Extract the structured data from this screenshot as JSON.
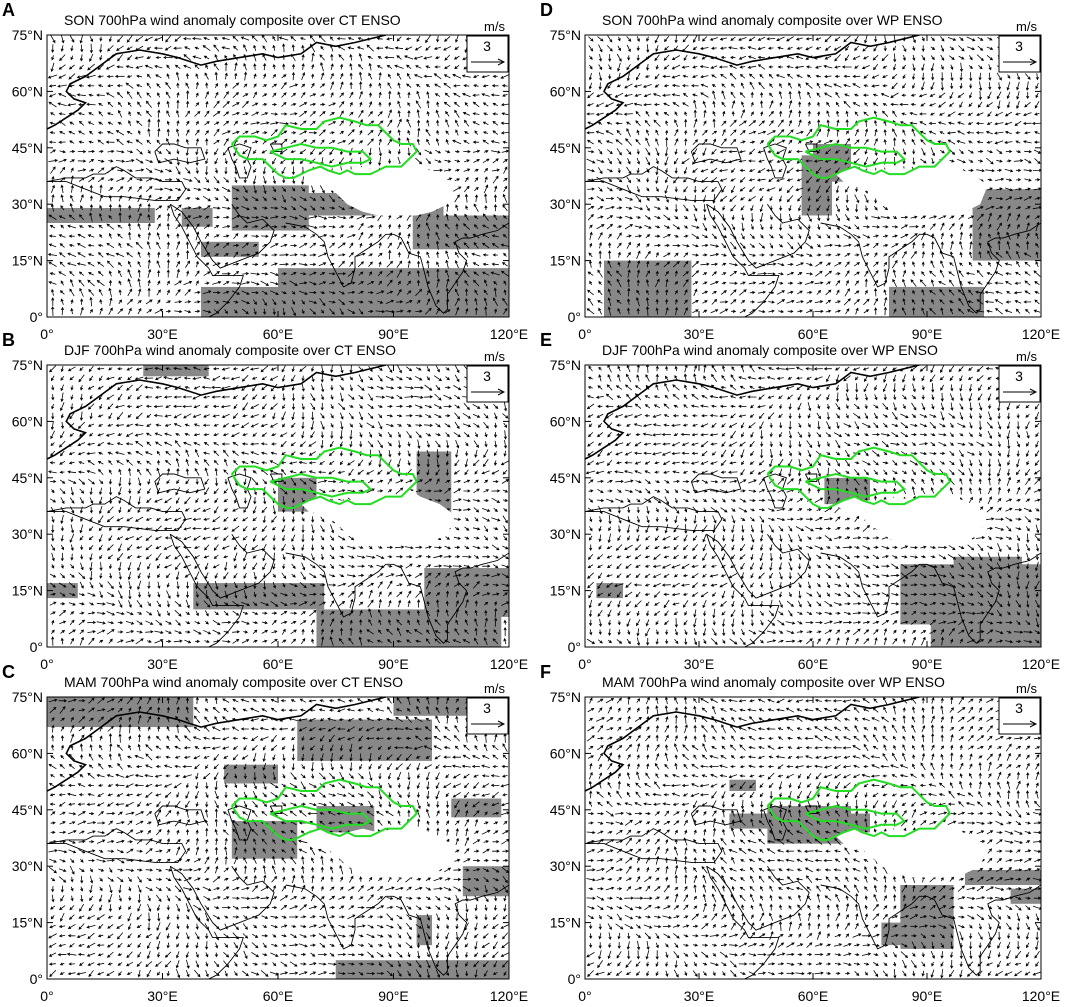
{
  "figure": {
    "x_ticks": [
      "0°",
      "30°E",
      "60°E",
      "90°E",
      "120°E"
    ],
    "y_ticks": [
      "75°N",
      "60°N",
      "45°N",
      "30°N",
      "15°N",
      "0°"
    ],
    "ref_vector": {
      "units": "m/s",
      "value": "3"
    },
    "colors": {
      "vector": "#000000",
      "shading": "#888888",
      "region_outline": "#22dd22",
      "coastline": "#000000",
      "tibet_mask": "#ffffff"
    },
    "extent": {
      "lon": [
        0,
        120
      ],
      "lat": [
        0,
        75
      ]
    }
  },
  "panels": [
    {
      "letter": "A",
      "title": "SON 700hPa wind anomaly composite over CT ENSO",
      "shading_rects": [
        [
          0,
          25,
          28,
          29
        ],
        [
          35,
          24,
          43,
          29
        ],
        [
          40,
          16,
          55,
          20
        ],
        [
          48,
          23,
          68,
          35
        ],
        [
          60,
          27,
          103,
          33
        ],
        [
          95,
          18,
          120,
          27
        ],
        [
          60,
          0,
          120,
          13
        ],
        [
          40,
          0,
          60,
          8
        ]
      ]
    },
    {
      "letter": "D",
      "title": "SON 700hPa wind anomaly composite over WP ENSO",
      "shading_rects": [
        [
          57,
          27,
          65,
          43
        ],
        [
          60,
          36,
          70,
          46
        ],
        [
          102,
          15,
          120,
          34
        ],
        [
          80,
          0,
          105,
          8
        ],
        [
          5,
          0,
          28,
          15
        ]
      ]
    },
    {
      "letter": "B",
      "title": "DJF 700hPa wind anomaly composite over CT ENSO",
      "shading_rects": [
        [
          25,
          72,
          42,
          75
        ],
        [
          0,
          13,
          8,
          17
        ],
        [
          38,
          10,
          72,
          17
        ],
        [
          70,
          0,
          118,
          10
        ],
        [
          98,
          8,
          120,
          21
        ],
        [
          96,
          34,
          105,
          52
        ],
        [
          60,
          36,
          70,
          45
        ]
      ]
    },
    {
      "letter": "E",
      "title": "DJF 700hPa wind anomaly composite over WP ENSO",
      "shading_rects": [
        [
          3,
          13,
          10,
          17
        ],
        [
          63,
          38,
          75,
          45
        ],
        [
          83,
          6,
          120,
          22
        ],
        [
          97,
          15,
          115,
          24
        ],
        [
          91,
          0,
          120,
          8
        ]
      ]
    },
    {
      "letter": "C",
      "title": "MAM 700hPa wind anomaly composite over CT ENSO",
      "shading_rects": [
        [
          0,
          67,
          38,
          75
        ],
        [
          46,
          52,
          60,
          57
        ],
        [
          65,
          58,
          100,
          69
        ],
        [
          90,
          70,
          115,
          75
        ],
        [
          48,
          32,
          65,
          42
        ],
        [
          105,
          43,
          118,
          48
        ],
        [
          108,
          22,
          120,
          30
        ],
        [
          75,
          0,
          120,
          5
        ],
        [
          96,
          9,
          100,
          17
        ],
        [
          70,
          38,
          85,
          46
        ]
      ]
    },
    {
      "letter": "F",
      "title": "MAM 700hPa wind anomaly composite over WP ENSO",
      "shading_rects": [
        [
          38,
          40,
          52,
          44
        ],
        [
          48,
          36,
          70,
          46
        ],
        [
          60,
          37,
          75,
          44
        ],
        [
          83,
          8,
          97,
          25
        ],
        [
          78,
          9,
          87,
          15
        ],
        [
          100,
          25,
          120,
          29
        ],
        [
          112,
          20,
          120,
          24
        ],
        [
          38,
          50,
          45,
          53
        ]
      ]
    }
  ]
}
